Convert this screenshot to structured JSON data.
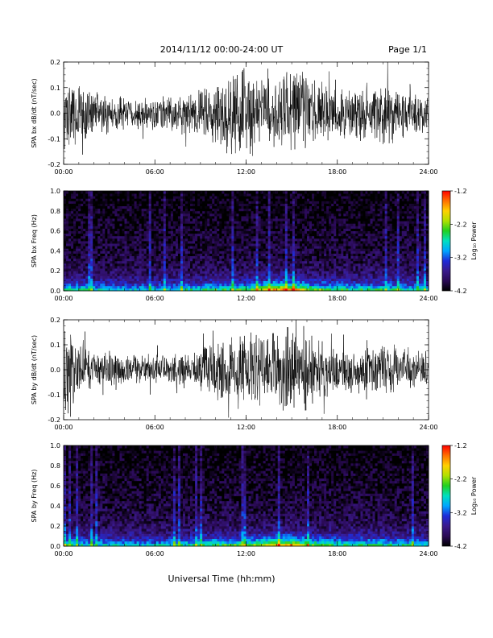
{
  "header": {
    "title": "2014/11/12  00:00-24:00 UT",
    "page": "Page 1/1"
  },
  "footer": {
    "xlabel": "Universal Time (hh:mm)"
  },
  "colors": {
    "trace": "#000000",
    "colormap": [
      "#000000",
      "#2a0a55",
      "#3a1a8c",
      "#1f2bd8",
      "#00a6ff",
      "#00e0c0",
      "#20d020",
      "#b0e000",
      "#ffd000",
      "#ff7000",
      "#ff0000"
    ]
  },
  "chart_data": [
    {
      "type": "line",
      "ylabel": "SPA bx dB/dt (nT/sec)",
      "xlim": [
        0,
        24
      ],
      "ylim": [
        -0.2,
        0.2
      ],
      "xticks": [
        "00:00",
        "06:00",
        "12:00",
        "18:00",
        "24:00"
      ],
      "yticks": [
        "-0.2",
        "-0.1",
        "0.0",
        "0.1",
        "0.2"
      ],
      "amplitude_envelope": {
        "x_hours": [
          0,
          1,
          2,
          3,
          4,
          5,
          6,
          7,
          8,
          9,
          10,
          11,
          12,
          13,
          14,
          15,
          16,
          17,
          18,
          19,
          20,
          21,
          22,
          23,
          24
        ],
        "half_range": [
          0.2,
          0.12,
          0.09,
          0.08,
          0.07,
          0.07,
          0.07,
          0.08,
          0.09,
          0.1,
          0.13,
          0.18,
          0.18,
          0.15,
          0.14,
          0.18,
          0.17,
          0.12,
          0.1,
          0.12,
          0.14,
          0.13,
          0.12,
          0.1,
          0.09
        ]
      }
    },
    {
      "type": "heatmap",
      "ylabel": "SPA bx Freq (Hz)",
      "xlim": [
        0,
        24
      ],
      "ylim": [
        0,
        1.0
      ],
      "xticks": [
        "00:00",
        "06:00",
        "12:00",
        "18:00",
        "24:00"
      ],
      "yticks": [
        "0.0",
        "0.2",
        "0.4",
        "0.6",
        "0.8",
        "1.0"
      ],
      "colorbar": {
        "label": "Log₁₀ Power",
        "range": [
          -4.2,
          -1.2
        ],
        "ticks": [
          "-1.2",
          "-2.2",
          "-3.2",
          "-4.2"
        ]
      },
      "low_freq_power_envelope": {
        "x_hours": [
          0,
          2,
          4,
          6,
          8,
          10,
          12,
          14,
          15,
          16,
          18,
          20,
          22,
          24
        ],
        "log10_power_at_0Hz": [
          -2.6,
          -2.9,
          -3.0,
          -3.0,
          -2.8,
          -2.6,
          -2.5,
          -1.6,
          -1.4,
          -2.2,
          -2.6,
          -2.6,
          -2.7,
          -2.9
        ]
      }
    },
    {
      "type": "line",
      "ylabel": "SPA by dB/dt (nT/sec)",
      "xlim": [
        0,
        24
      ],
      "ylim": [
        -0.2,
        0.2
      ],
      "xticks": [
        "00:00",
        "06:00",
        "12:00",
        "18:00",
        "24:00"
      ],
      "yticks": [
        "-0.2",
        "-0.1",
        "0.0",
        "0.1",
        "0.2"
      ],
      "amplitude_envelope": {
        "x_hours": [
          0,
          1,
          2,
          3,
          4,
          5,
          6,
          7,
          8,
          9,
          10,
          11,
          12,
          13,
          14,
          15,
          16,
          17,
          18,
          19,
          20,
          21,
          22,
          23,
          24
        ],
        "half_range": [
          0.2,
          0.12,
          0.08,
          0.07,
          0.06,
          0.07,
          0.06,
          0.07,
          0.08,
          0.09,
          0.11,
          0.14,
          0.16,
          0.15,
          0.16,
          0.2,
          0.18,
          0.12,
          0.1,
          0.11,
          0.12,
          0.11,
          0.1,
          0.09,
          0.08
        ]
      }
    },
    {
      "type": "heatmap",
      "ylabel": "SPA by Freq (Hz)",
      "xlim": [
        0,
        24
      ],
      "ylim": [
        0,
        1.0
      ],
      "xticks": [
        "00:00",
        "06:00",
        "12:00",
        "18:00",
        "24:00"
      ],
      "yticks": [
        "0.0",
        "0.2",
        "0.4",
        "0.6",
        "0.8",
        "1.0"
      ],
      "colorbar": {
        "label": "Log₁₀ Power",
        "range": [
          -4.2,
          -1.2
        ],
        "ticks": [
          "-1.2",
          "-2.2",
          "-3.2",
          "-4.2"
        ]
      },
      "low_freq_power_envelope": {
        "x_hours": [
          0,
          2,
          4,
          6,
          8,
          10,
          12,
          14,
          15,
          16,
          18,
          20,
          22,
          24
        ],
        "log10_power_at_0Hz": [
          -2.6,
          -2.9,
          -3.0,
          -3.0,
          -2.7,
          -2.5,
          -2.5,
          -1.7,
          -1.5,
          -2.2,
          -2.6,
          -2.6,
          -2.7,
          -2.9
        ]
      }
    }
  ]
}
